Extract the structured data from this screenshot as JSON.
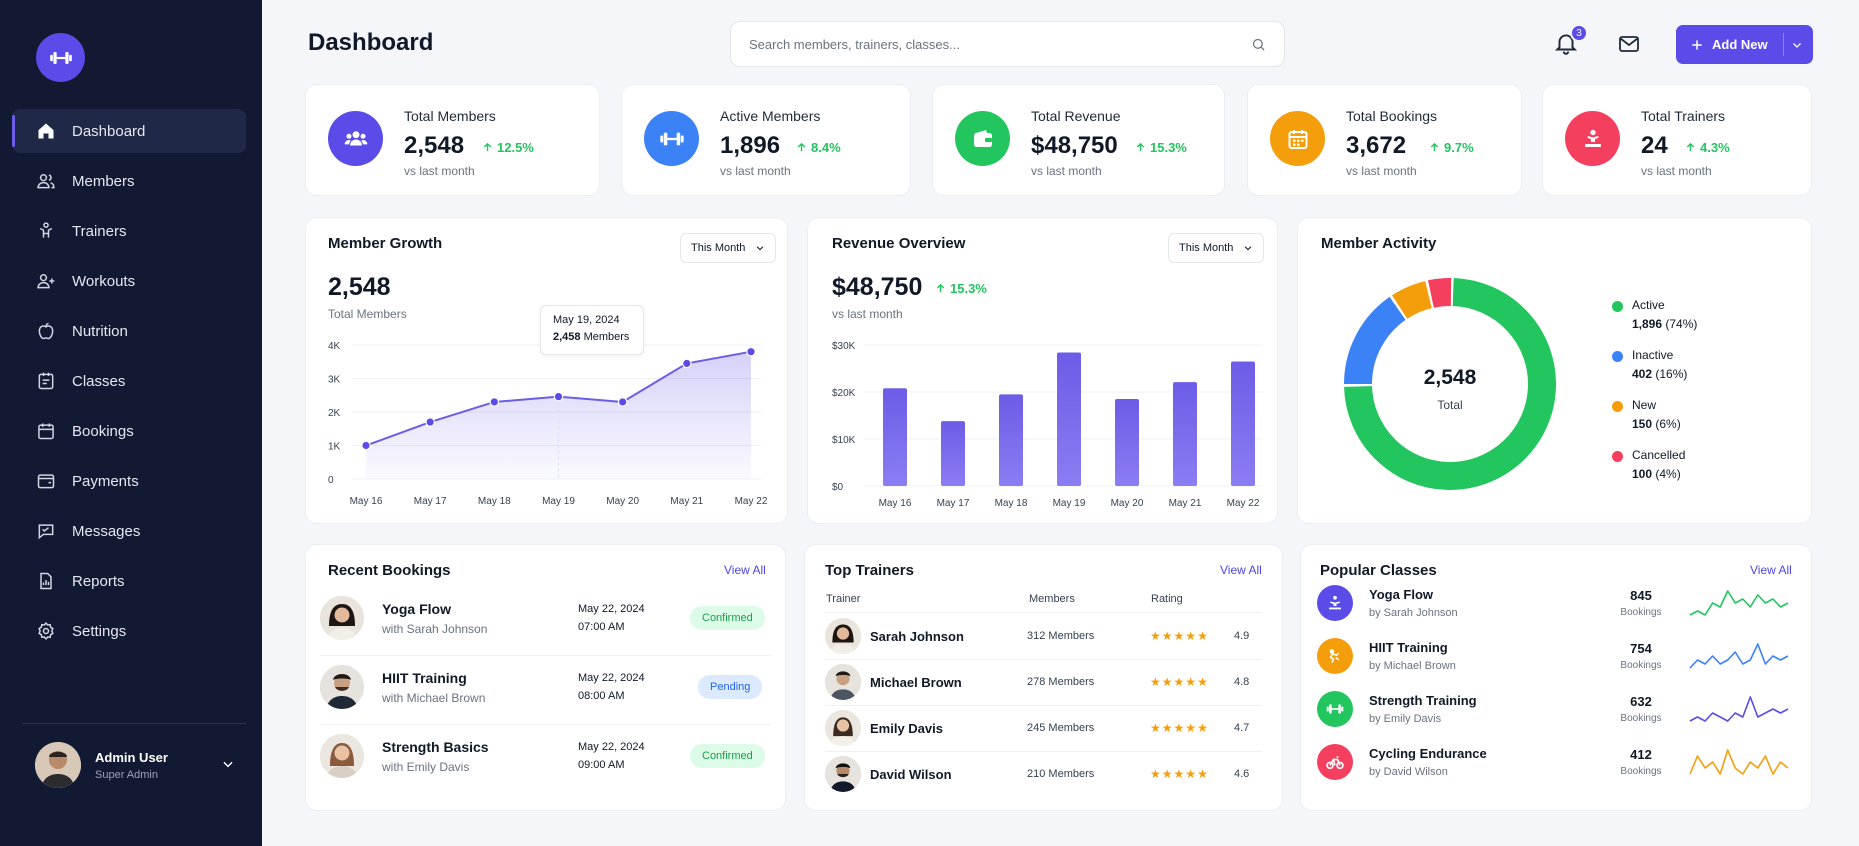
{
  "colors": {
    "accent": "#5b4be8",
    "sidebar_bg": "#121a33",
    "green": "#22c55e",
    "blue": "#3b82f6",
    "orange": "#f59e0b",
    "pink": "#f43f5e"
  },
  "sidebar": {
    "logo_icon": "dumbbell-icon",
    "items": [
      {
        "label": "Dashboard",
        "icon": "home-icon",
        "active": true
      },
      {
        "label": "Members",
        "icon": "users-icon"
      },
      {
        "label": "Trainers",
        "icon": "trainer-icon"
      },
      {
        "label": "Workouts",
        "icon": "workout-icon"
      },
      {
        "label": "Nutrition",
        "icon": "apple-icon"
      },
      {
        "label": "Classes",
        "icon": "classes-icon"
      },
      {
        "label": "Bookings",
        "icon": "calendar-icon"
      },
      {
        "label": "Payments",
        "icon": "wallet-icon"
      },
      {
        "label": "Messages",
        "icon": "message-icon"
      },
      {
        "label": "Reports",
        "icon": "report-icon"
      },
      {
        "label": "Settings",
        "icon": "gear-icon"
      }
    ],
    "user": {
      "name": "Admin User",
      "role": "Super Admin"
    }
  },
  "header": {
    "title": "Dashboard",
    "search_placeholder": "Search members, trainers, classes...",
    "notification_count": "3",
    "add_button": "Add New"
  },
  "stats": [
    {
      "label": "Total Members",
      "value": "2,548",
      "change": "12.5%",
      "sub": "vs last month",
      "icon": "users-icon",
      "color": "#5b4be8"
    },
    {
      "label": "Active Members",
      "value": "1,896",
      "change": "8.4%",
      "sub": "vs last month",
      "icon": "dumbbell-icon",
      "color": "#3b82f6"
    },
    {
      "label": "Total Revenue",
      "value": "$48,750",
      "change": "15.3%",
      "sub": "vs last month",
      "icon": "wallet-icon",
      "color": "#22c55e"
    },
    {
      "label": "Total Bookings",
      "value": "3,672",
      "change": "9.7%",
      "sub": "vs last month",
      "icon": "calendar-icon",
      "color": "#f59e0b"
    },
    {
      "label": "Total Trainers",
      "value": "24",
      "change": "4.3%",
      "sub": "vs last month",
      "icon": "trainer-icon",
      "color": "#f43f5e"
    }
  ],
  "member_growth": {
    "title": "Member Growth",
    "filter": "This Month",
    "value": "2,548",
    "sub": "Total Members",
    "tooltip": {
      "date": "May 19, 2024",
      "value": "2,458",
      "unit": "Members"
    }
  },
  "revenue_overview": {
    "title": "Revenue Overview",
    "filter": "This Month",
    "value": "$48,750",
    "change": "15.3%",
    "sub": "vs last month"
  },
  "member_activity": {
    "title": "Member Activity",
    "center_value": "2,548",
    "center_label": "Total",
    "legend": [
      {
        "name": "Active",
        "value": "1,896",
        "pct": "(74%)",
        "color": "#22c55e"
      },
      {
        "name": "Inactive",
        "value": "402",
        "pct": "(16%)",
        "color": "#3b82f6"
      },
      {
        "name": "New",
        "value": "150",
        "pct": "(6%)",
        "color": "#f59e0b"
      },
      {
        "name": "Cancelled",
        "value": "100",
        "pct": "(4%)",
        "color": "#f43f5e"
      }
    ]
  },
  "chart_data": [
    {
      "type": "line",
      "title": "",
      "categories": [
        "May 16",
        "May 17",
        "May 18",
        "May 19",
        "May 20",
        "May 21",
        "May 22"
      ],
      "y_ticks": [
        "0",
        "1K",
        "2K",
        "3K",
        "4K"
      ],
      "ylim": [
        0,
        4000
      ],
      "series": [
        {
          "values": [
            1000,
            1700,
            2300,
            2458,
            2300,
            3450,
            3800
          ]
        }
      ]
    },
    {
      "type": "bar",
      "title": "",
      "categories": [
        "May 16",
        "May 17",
        "May 18",
        "May 19",
        "May 20",
        "May 21",
        "May 22"
      ],
      "y_ticks": [
        "$0",
        "$10K",
        "$20K",
        "$30K"
      ],
      "ylim": [
        0,
        30000
      ],
      "series": [
        {
          "values": [
            20800,
            13800,
            19500,
            28400,
            18500,
            22100,
            26500
          ]
        }
      ]
    },
    {
      "type": "pie",
      "title": "",
      "categories": [
        "Active",
        "Inactive",
        "New",
        "Cancelled"
      ],
      "values": [
        1896,
        402,
        150,
        100
      ]
    }
  ],
  "recent_bookings": {
    "title": "Recent Bookings",
    "view_all": "View All",
    "items": [
      {
        "class": "Yoga Flow",
        "trainer": "with Sarah Johnson",
        "date": "May 22, 2024",
        "time": "07:00 AM",
        "status": "Confirmed"
      },
      {
        "class": "HIIT Training",
        "trainer": "with Michael Brown",
        "date": "May 22, 2024",
        "time": "08:00 AM",
        "status": "Pending"
      },
      {
        "class": "Strength Basics",
        "trainer": "with Emily Davis",
        "date": "May 22, 2024",
        "time": "09:00 AM",
        "status": "Confirmed"
      }
    ]
  },
  "top_trainers": {
    "title": "Top Trainers",
    "view_all": "View All",
    "headers": {
      "trainer": "Trainer",
      "members": "Members",
      "rating": "Rating"
    },
    "items": [
      {
        "name": "Sarah Johnson",
        "members": "312 Members",
        "rating": "4.9"
      },
      {
        "name": "Michael Brown",
        "members": "278 Members",
        "rating": "4.8"
      },
      {
        "name": "Emily Davis",
        "members": "245 Members",
        "rating": "4.7"
      },
      {
        "name": "David Wilson",
        "members": "210 Members",
        "rating": "4.6"
      }
    ]
  },
  "popular_classes": {
    "title": "Popular Classes",
    "view_all": "View All",
    "items": [
      {
        "name": "Yoga Flow",
        "trainer": "by Sarah Johnson",
        "count": "845",
        "unit": "Bookings",
        "color": "#5b4be8",
        "spark_color": "#22c55e",
        "spark": [
          3,
          4,
          3,
          6,
          5,
          9,
          6,
          7,
          5,
          8,
          6,
          7,
          5,
          6
        ]
      },
      {
        "name": "HIIT Training",
        "trainer": "by Michael Brown",
        "count": "754",
        "unit": "Bookings",
        "color": "#f59e0b",
        "spark_color": "#3b82f6",
        "spark": [
          3,
          5,
          4,
          6,
          4,
          5,
          7,
          4,
          5,
          9,
          4,
          6,
          5,
          6
        ]
      },
      {
        "name": "Strength Training",
        "trainer": "by Emily Davis",
        "count": "632",
        "unit": "Bookings",
        "color": "#22c55e",
        "spark_color": "#5b4be8",
        "spark": [
          3,
          4,
          3,
          5,
          4,
          3,
          5,
          4,
          9,
          4,
          5,
          6,
          5,
          6
        ]
      },
      {
        "name": "Cycling Endurance",
        "trainer": "by David Wilson",
        "count": "412",
        "unit": "Bookings",
        "color": "#f43f5e",
        "spark_color": "#f59e0b",
        "spark": [
          3,
          6,
          4,
          5,
          3,
          7,
          4,
          3,
          5,
          4,
          6,
          3,
          5,
          4
        ]
      }
    ]
  }
}
